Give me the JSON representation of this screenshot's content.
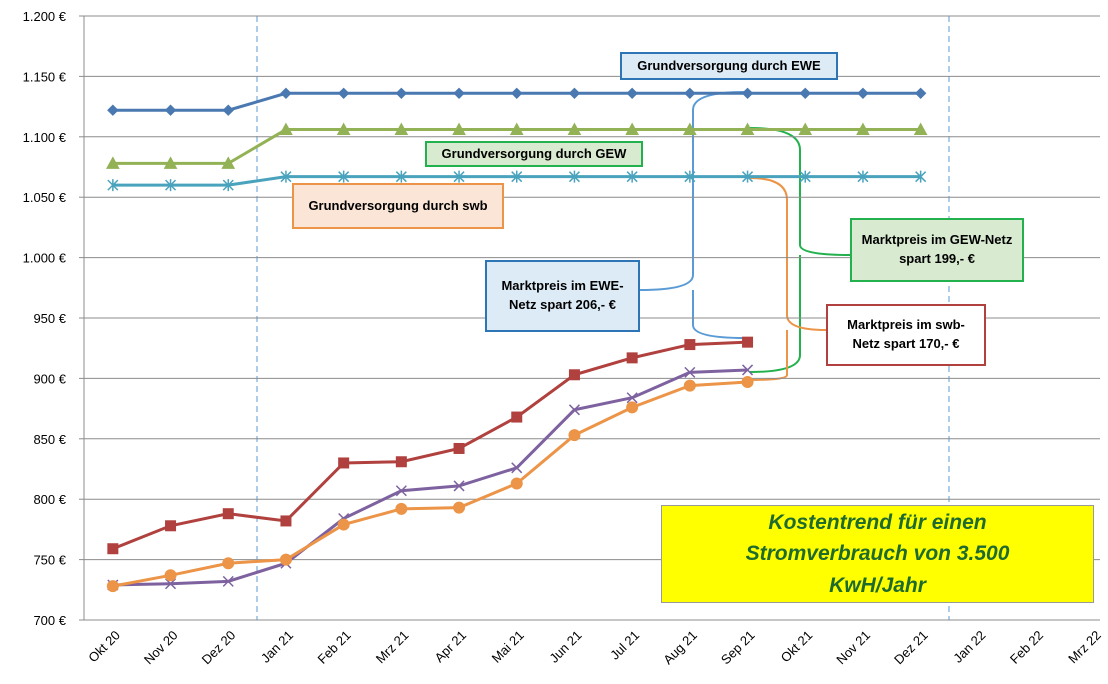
{
  "chart_data": {
    "type": "line",
    "categories": [
      "Okt 20",
      "Nov 20",
      "Dez 20",
      "Jan 21",
      "Feb 21",
      "Mrz 21",
      "Apr 21",
      "Mai 21",
      "Jun 21",
      "Jul 21",
      "Aug 21",
      "Sep 21",
      "Okt 21",
      "Nov 21",
      "Dez 21",
      "Jan 22",
      "Feb 22",
      "Mrz 22"
    ],
    "ylim": [
      700,
      1200
    ],
    "yticks": [
      {
        "value": 700,
        "label": "700 €"
      },
      {
        "value": 750,
        "label": "750 €"
      },
      {
        "value": 800,
        "label": "800 €"
      },
      {
        "value": 850,
        "label": "850 €"
      },
      {
        "value": 900,
        "label": "900 €"
      },
      {
        "value": 950,
        "label": "950 €"
      },
      {
        "value": 1000,
        "label": "1.000 €"
      },
      {
        "value": 1050,
        "label": "1.050 €"
      },
      {
        "value": 1100,
        "label": "1.100 €"
      },
      {
        "value": 1150,
        "label": "1.150 €"
      },
      {
        "value": 1200,
        "label": "1.200 €"
      }
    ],
    "grid": true,
    "series": [
      {
        "color": "#4a78b0",
        "marker": "diamond",
        "values": [
          1122,
          1122,
          1122,
          1136,
          1136,
          1136,
          1136,
          1136,
          1136,
          1136,
          1136,
          1136,
          1136,
          1136,
          1136,
          null,
          null,
          null
        ]
      },
      {
        "color": "#93b256",
        "marker": "triangle",
        "values": [
          1078,
          1078,
          1078,
          1106,
          1106,
          1106,
          1106,
          1106,
          1106,
          1106,
          1106,
          1106,
          1106,
          1106,
          1106,
          null,
          null,
          null
        ]
      },
      {
        "color": "#4aa3bd",
        "marker": "star",
        "values": [
          1060,
          1060,
          1060,
          1067,
          1067,
          1067,
          1067,
          1067,
          1067,
          1067,
          1067,
          1067,
          1067,
          1067,
          1067,
          null,
          null,
          null
        ]
      },
      {
        "color": "#b0413e",
        "marker": "square",
        "values": [
          759,
          778,
          788,
          782,
          830,
          831,
          842,
          868,
          903,
          917,
          928,
          930,
          null,
          null,
          null,
          null,
          null,
          null
        ]
      },
      {
        "color": "#7e62a0",
        "marker": "x",
        "values": [
          729,
          730,
          732,
          747,
          784,
          807,
          811,
          826,
          874,
          884,
          905,
          907,
          null,
          null,
          null,
          null,
          null,
          null
        ]
      },
      {
        "color": "#ec9447",
        "marker": "circle",
        "values": [
          728,
          737,
          747,
          750,
          779,
          792,
          793,
          813,
          853,
          876,
          894,
          897,
          null,
          null,
          null,
          null,
          null,
          null
        ]
      }
    ],
    "annotations": [
      "Grundversorgung durch EWE",
      "Grundversorgung durch GEW",
      "Grundversorgung durch swb",
      "Marktpreis im EWE- Netz spart 206,- €",
      "Marktpreis  im GEW-Netz spart 199,- €",
      "Marktpreis im swb-Netz spart 170,- €",
      "Kostentrend für einen Stromverbrauch von 3.500 KwH/Jahr"
    ]
  }
}
